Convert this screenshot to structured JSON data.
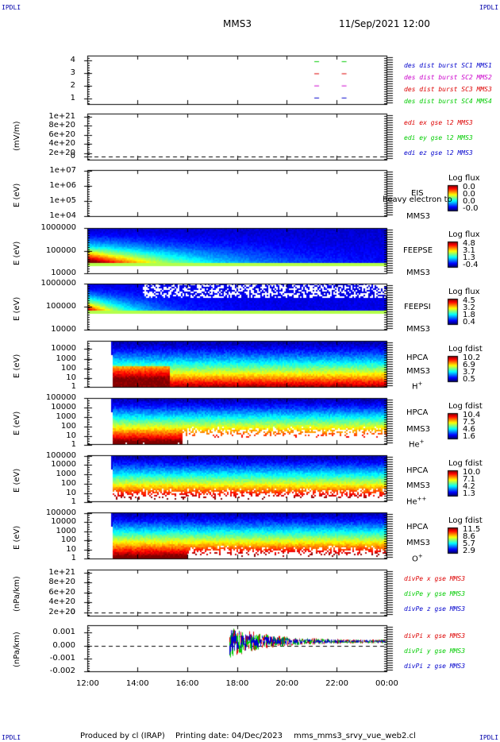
{
  "header": {
    "corner_tl": "IPDLI",
    "corner_tr": "IPDLI",
    "corner_bl": "IPDLI",
    "corner_br": "IPDLI",
    "spacecraft": "MMS3",
    "datetime": "11/Sep/2021 12:00"
  },
  "footer": {
    "credit": "Produced by cl (IRAP)",
    "printing": "Printing date: 04/Dec/2023",
    "file": "mms_mms3_srvy_vue_web2.cl"
  },
  "colors": {
    "red": "#dd0000",
    "green": "#00cc00",
    "blue": "#0000cc",
    "magenta": "#cc00cc",
    "fill_color": "#ffff00"
  },
  "chart_data": [
    {
      "id": "burst",
      "type": "line",
      "tick_labels": [
        "4",
        "3",
        "2",
        "1"
      ],
      "ylim": [
        0.5,
        4.5
      ],
      "x_unit": "hours_after_12:00",
      "legend": [
        {
          "label": "des dist burst SC1 MMS1",
          "color": "#0000cc"
        },
        {
          "label": "des dist burst SC2 MMS2",
          "color": "#cc00cc"
        },
        {
          "label": "des dist burst SC3 MMS3",
          "color": "#dd0000"
        },
        {
          "label": "des dist burst SC4 MMS4",
          "color": "#00cc00"
        }
      ],
      "segments": [
        {
          "sc": 4,
          "color": "#00cc00",
          "x": [
            9.2,
            10.3
          ]
        },
        {
          "sc": 3,
          "color": "#dd0000",
          "x": [
            9.2,
            10.3
          ]
        },
        {
          "sc": 2,
          "color": "#cc00cc",
          "x": [
            9.2,
            10.3
          ]
        },
        {
          "sc": 1,
          "color": "#0000cc",
          "x": [
            9.2,
            10.3
          ]
        }
      ]
    },
    {
      "id": "edi",
      "type": "line",
      "ylabel": "(mV/m)",
      "tick_labels": [
        "1e+21",
        "8e+20",
        "6e+20",
        "4e+20",
        "2e+20",
        "0"
      ],
      "legend": [
        {
          "label": "edi ex gse l2 MMS3",
          "color": "#dd0000"
        },
        {
          "label": "edi ey gse l2 MMS3",
          "color": "#00cc00"
        },
        {
          "label": "edi ez gse l2 MMS3",
          "color": "#0000cc"
        }
      ]
    },
    {
      "id": "eis",
      "type": "heatmap",
      "ylabel": "E (eV)",
      "tick_labels": [
        "1e+07",
        "1e+06",
        "1e+05",
        "1e+04"
      ],
      "instrument": "EIS",
      "name_overlay": "heavy electron to",
      "sc": "MMS3",
      "cbar_title": "Log flux",
      "cbar_ticks": [
        "0.0",
        "0.0",
        "0.0",
        "-0.0"
      ]
    },
    {
      "id": "feeps_e",
      "type": "heatmap",
      "ylabel": "E (eV)",
      "tick_labels": [
        "1000000",
        "100000",
        "10000"
      ],
      "instrument": "FEEPSE",
      "sc": "MMS3",
      "cbar_title": "Log flux",
      "cbar_ticks": [
        "4.8",
        "3.1",
        "1.3",
        "-0.4"
      ]
    },
    {
      "id": "feeps_i",
      "type": "heatmap",
      "ylabel": "E (eV)",
      "tick_labels": [
        "1000000",
        "100000",
        "10000"
      ],
      "instrument": "FEEPSI",
      "sc": "MMS3",
      "cbar_title": "Log flux",
      "cbar_ticks": [
        "4.5",
        "3.2",
        "1.8",
        "0.4"
      ]
    },
    {
      "id": "hpca_h",
      "type": "heatmap",
      "ylabel": "E (eV)",
      "tick_labels": [
        "10000",
        "1000",
        "100",
        "10",
        "1"
      ],
      "instrument": "HPCA",
      "sc": "MMS3",
      "species": "H",
      "species_sup": "+",
      "cbar_title": "Log fdist",
      "cbar_ticks": [
        "10.2",
        "6.9",
        "3.7",
        "0.5"
      ]
    },
    {
      "id": "hpca_he",
      "type": "heatmap",
      "ylabel": "E (eV)",
      "tick_labels": [
        "100000",
        "10000",
        "1000",
        "100",
        "10",
        "1"
      ],
      "instrument": "HPCA",
      "sc": "MMS3",
      "species": "He",
      "species_sup": "+",
      "cbar_title": "Log fdist",
      "cbar_ticks": [
        "10.4",
        "7.5",
        "4.6",
        "1.6"
      ]
    },
    {
      "id": "hpca_hepp",
      "type": "heatmap",
      "ylabel": "E (eV)",
      "tick_labels": [
        "100000",
        "10000",
        "1000",
        "100",
        "10",
        "1"
      ],
      "instrument": "HPCA",
      "sc": "MMS3",
      "species": "He",
      "species_sup": "++",
      "cbar_title": "Log fdist",
      "cbar_ticks": [
        "10.0",
        "7.1",
        "4.2",
        "1.3"
      ]
    },
    {
      "id": "hpca_o",
      "type": "heatmap",
      "ylabel": "E (eV)",
      "tick_labels": [
        "100000",
        "10000",
        "1000",
        "100",
        "10",
        "1"
      ],
      "instrument": "HPCA",
      "sc": "MMS3",
      "species": "O",
      "species_sup": "+",
      "cbar_title": "Log fdist",
      "cbar_ticks": [
        "11.5",
        "8.6",
        "5.7",
        "2.9"
      ]
    },
    {
      "id": "divpe",
      "type": "line",
      "ylabel": "(nPa/km)",
      "tick_labels": [
        "1e+21",
        "8e+20",
        "6e+20",
        "4e+20",
        "2e+20",
        "0"
      ],
      "legend": [
        {
          "label": "divPe x gse MMS3",
          "color": "#dd0000"
        },
        {
          "label": "divPe y gse MMS3",
          "color": "#00cc00"
        },
        {
          "label": "divPe z gse MMS3",
          "color": "#0000cc"
        }
      ]
    },
    {
      "id": "divpi",
      "type": "line",
      "ylabel": "(nPa/km)",
      "tick_labels": [
        "0.001",
        "0.000",
        "-0.001",
        "-0.002"
      ],
      "ylim": [
        -0.0024,
        0.0013
      ],
      "legend": [
        {
          "label": "divPi x gse MMS3",
          "color": "#dd0000"
        },
        {
          "label": "divPi y gse MMS3",
          "color": "#00cc00"
        },
        {
          "label": "divPi z gse MMS3",
          "color": "#0000cc"
        }
      ],
      "data_start_hour": 5.7
    }
  ],
  "x_axis": {
    "tick_labels": [
      "12:00",
      "14:00",
      "16:00",
      "18:00",
      "20:00",
      "22:00",
      "00:00"
    ],
    "range_hours": [
      0,
      12
    ]
  }
}
